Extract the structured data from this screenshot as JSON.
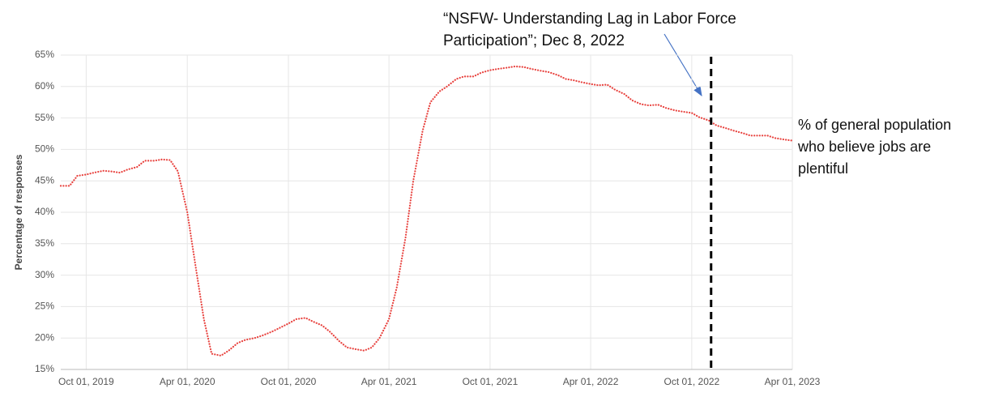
{
  "chart_data": {
    "type": "line",
    "ylabel": "Percentage of responses",
    "annotation": "“NSFW- Understanding Lag in Labor Force Participation”; Dec 8, 2022",
    "vline": "2022-11-05",
    "grid": true,
    "xlim": [
      "2019-08-16",
      "2023-04-01"
    ],
    "xticks": [
      {
        "value": "2019-10-01",
        "label": "Oct 01, 2019"
      },
      {
        "value": "2020-04-01",
        "label": "Apr 01, 2020"
      },
      {
        "value": "2020-10-01",
        "label": "Oct 01, 2020"
      },
      {
        "value": "2021-04-01",
        "label": "Apr 01, 2021"
      },
      {
        "value": "2021-10-01",
        "label": "Oct 01, 2021"
      },
      {
        "value": "2022-04-01",
        "label": "Apr 01, 2022"
      },
      {
        "value": "2022-10-01",
        "label": "Oct 01, 2022"
      },
      {
        "value": "2023-04-01",
        "label": "Apr 01, 2023"
      }
    ],
    "ylim": [
      15,
      65
    ],
    "yticks": [
      {
        "value": 15,
        "label": "15%"
      },
      {
        "value": 20,
        "label": "20%"
      },
      {
        "value": 25,
        "label": "25%"
      },
      {
        "value": 30,
        "label": "30%"
      },
      {
        "value": 35,
        "label": "35%"
      },
      {
        "value": 40,
        "label": "40%"
      },
      {
        "value": 45,
        "label": "45%"
      },
      {
        "value": 50,
        "label": "50%"
      },
      {
        "value": 55,
        "label": "55%"
      },
      {
        "value": 60,
        "label": "60%"
      },
      {
        "value": 65,
        "label": "65%"
      }
    ],
    "x": [
      "2019-08-16",
      "2019-09-01",
      "2019-09-15",
      "2019-10-01",
      "2019-10-15",
      "2019-11-01",
      "2019-11-15",
      "2019-12-01",
      "2019-12-15",
      "2020-01-01",
      "2020-01-15",
      "2020-02-01",
      "2020-02-15",
      "2020-03-01",
      "2020-03-15",
      "2020-04-01",
      "2020-04-15",
      "2020-05-01",
      "2020-05-15",
      "2020-06-01",
      "2020-06-15",
      "2020-07-01",
      "2020-07-15",
      "2020-08-01",
      "2020-08-15",
      "2020-09-01",
      "2020-09-15",
      "2020-10-01",
      "2020-10-15",
      "2020-11-01",
      "2020-11-15",
      "2020-12-01",
      "2020-12-15",
      "2021-01-01",
      "2021-01-15",
      "2021-02-01",
      "2021-02-15",
      "2021-03-01",
      "2021-03-15",
      "2021-04-01",
      "2021-04-15",
      "2021-05-01",
      "2021-05-15",
      "2021-06-01",
      "2021-06-15",
      "2021-07-01",
      "2021-07-15",
      "2021-08-01",
      "2021-08-15",
      "2021-09-01",
      "2021-09-15",
      "2021-10-01",
      "2021-10-15",
      "2021-11-01",
      "2021-11-15",
      "2021-12-01",
      "2021-12-15",
      "2022-01-01",
      "2022-01-15",
      "2022-02-01",
      "2022-02-15",
      "2022-03-01",
      "2022-03-15",
      "2022-04-01",
      "2022-04-15",
      "2022-05-01",
      "2022-05-15",
      "2022-06-01",
      "2022-06-15",
      "2022-07-01",
      "2022-07-15",
      "2022-08-01",
      "2022-08-15",
      "2022-09-01",
      "2022-09-15",
      "2022-10-01",
      "2022-10-15",
      "2022-11-01",
      "2022-11-15",
      "2022-12-01",
      "2022-12-15",
      "2023-01-01",
      "2023-01-15",
      "2023-02-01",
      "2023-02-15",
      "2023-03-01",
      "2023-03-15",
      "2023-04-01"
    ],
    "series": [
      {
        "name": "% of general population who believe jobs are plentiful",
        "color": "#e8433f",
        "values": [
          44.2,
          44.2,
          45.8,
          46.0,
          46.3,
          46.6,
          46.5,
          46.3,
          46.8,
          47.2,
          48.2,
          48.2,
          48.4,
          48.3,
          46.5,
          40.0,
          32.0,
          23.0,
          17.5,
          17.2,
          18.0,
          19.2,
          19.7,
          20.0,
          20.4,
          21.0,
          21.6,
          22.3,
          23.0,
          23.2,
          22.6,
          22.0,
          21.0,
          19.5,
          18.5,
          18.2,
          18.0,
          18.5,
          20.0,
          23.0,
          28.0,
          36.0,
          45.0,
          53.0,
          57.5,
          59.2,
          60.0,
          61.2,
          61.6,
          61.6,
          62.2,
          62.6,
          62.8,
          63.0,
          63.2,
          63.1,
          62.8,
          62.5,
          62.3,
          61.8,
          61.2,
          61.0,
          60.7,
          60.4,
          60.2,
          60.3,
          59.5,
          58.8,
          57.8,
          57.2,
          57.0,
          57.1,
          56.6,
          56.2,
          56.0,
          55.8,
          55.1,
          54.6,
          53.8,
          53.4,
          53.0,
          52.6,
          52.2,
          52.2,
          52.2,
          51.8,
          51.6,
          51.4
        ]
      }
    ]
  }
}
